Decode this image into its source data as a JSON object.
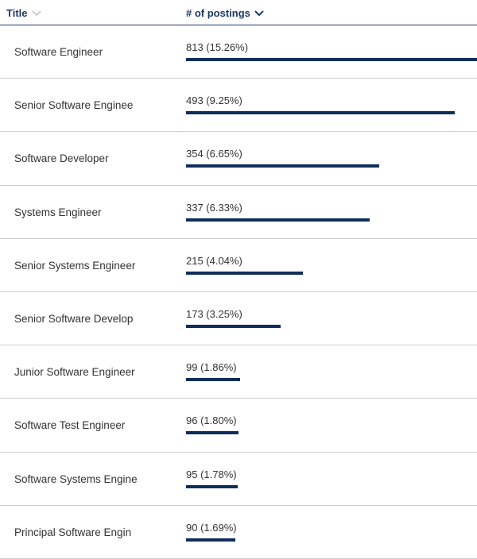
{
  "table": {
    "columns": [
      "Title",
      "# of postings"
    ],
    "rows": [
      {
        "title": "Software Engineer",
        "value": 813,
        "label": "813 (15.26%)"
      },
      {
        "title": "Senior Software Enginee",
        "value": 493,
        "label": "493 (9.25%)"
      },
      {
        "title": "Software Developer",
        "value": 354,
        "label": "354 (6.65%)"
      },
      {
        "title": "Systems Engineer",
        "value": 337,
        "label": "337 (6.33%)"
      },
      {
        "title": "Senior Systems Engineer",
        "value": 215,
        "label": "215 (4.04%)"
      },
      {
        "title": "Senior Software Develop",
        "value": 173,
        "label": "173 (3.25%)"
      },
      {
        "title": "Junior Software Engineer",
        "value": 99,
        "label": "99 (1.86%)"
      },
      {
        "title": "Software Test Engineer",
        "value": 96,
        "label": "96 (1.80%)"
      },
      {
        "title": "Software Systems Engine",
        "value": 95,
        "label": "95 (1.78%)"
      },
      {
        "title": "Principal Software Engin",
        "value": 90,
        "label": "90 (1.69%)"
      }
    ]
  }
}
